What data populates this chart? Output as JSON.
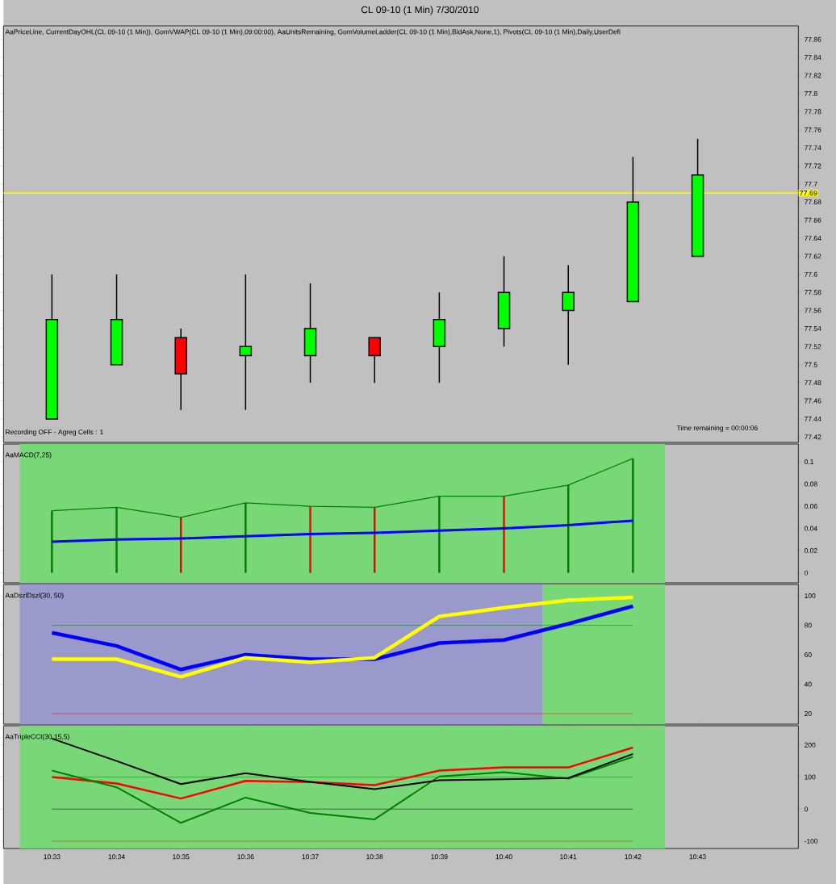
{
  "chart_data": [
    {
      "type": "candlestick",
      "title": "CL 09-10 (1 Min)  7/30/2010",
      "annotations": [
        "AaPriceLine, CurrentDayOHL(CL 09-10 (1 Min)), GomVWAP(CL 09-10 (1 Min),09:00:00), AaUnitsRemaining, GomVolumeLadder(CL 09-10 (1 Min),BidAsk,None,1), Pivots(CL 09-10 (1 Min),Daily,UserDefi",
        "Recording OFF - Agreg Cells : 1",
        "Time remaining = 00:00:06"
      ],
      "x": [
        10.55,
        10.5667,
        10.5833,
        10.6,
        10.6167,
        10.6333,
        10.65,
        10.6667,
        10.6833,
        10.7,
        10.7167
      ],
      "ohlc": [
        [
          77.44,
          77.6,
          77.44,
          77.55
        ],
        [
          77.5,
          77.6,
          77.5,
          77.55
        ],
        [
          77.53,
          77.54,
          77.45,
          77.49
        ],
        [
          77.51,
          77.6,
          77.45,
          77.52
        ],
        [
          77.51,
          77.59,
          77.48,
          77.54
        ],
        [
          77.53,
          77.53,
          77.48,
          77.51
        ],
        [
          77.52,
          77.58,
          77.48,
          77.55
        ],
        [
          77.54,
          77.62,
          77.52,
          77.58
        ],
        [
          77.56,
          77.61,
          77.5,
          77.58
        ],
        [
          77.57,
          77.73,
          77.57,
          77.68
        ],
        [
          77.62,
          77.75,
          77.62,
          77.71
        ]
      ],
      "colors": [
        "#00ff00",
        "#00ff00",
        "#ff0000",
        "#00ff00",
        "#00ff00",
        "#ff0000",
        "#00ff00",
        "#00ff00",
        "#00ff00",
        "#00ff00",
        "#00ff00"
      ],
      "xlim": [
        10.5375,
        10.7427
      ],
      "ylim": [
        77.414,
        77.875
      ],
      "yticks": [
        77.42,
        77.44,
        77.46,
        77.48,
        77.5,
        77.52,
        77.54,
        77.56,
        77.58,
        77.6,
        77.62,
        77.64,
        77.66,
        77.68,
        77.7,
        77.72,
        77.74,
        77.76,
        77.78,
        77.8,
        77.82,
        77.84,
        77.86
      ],
      "ref_lines": [
        {
          "axis": "y",
          "value": 77.69,
          "label": "77.69",
          "color": "#ffff00"
        }
      ],
      "tick_labels": "y"
    },
    {
      "type": "bar",
      "title": "AaMACD(7,25)",
      "x": [
        10.55,
        10.5667,
        10.5833,
        10.6,
        10.6167,
        10.6333,
        10.65,
        10.6667,
        10.6833,
        10.7
      ],
      "series": [
        {
          "type": "bar",
          "colors": [
            "#008000",
            "#008000",
            "#ff0000",
            "#008000",
            "#ff0000",
            "#ff0000",
            "#008000",
            "#ff0000",
            "#008000",
            "#008000"
          ],
          "values": [
            0.056,
            0.059,
            0.05,
            0.063,
            0.06,
            0.059,
            0.069,
            0.069,
            0.079,
            0.103
          ]
        },
        {
          "type": "line",
          "color": "#008000",
          "values": [
            0.056,
            0.059,
            0.05,
            0.063,
            0.06,
            0.059,
            0.069,
            0.069,
            0.079,
            0.103
          ]
        },
        {
          "type": "line",
          "color": "#0000ff",
          "values": [
            0.028,
            0.03,
            0.031,
            0.033,
            0.035,
            0.036,
            0.038,
            0.04,
            0.043,
            0.047
          ]
        }
      ],
      "bands": [
        {
          "axis": "x",
          "from": 10.5417,
          "to": 10.7083,
          "color": "#78d878"
        }
      ],
      "xlim": [
        10.5375,
        10.7427
      ],
      "ylim": [
        -0.009,
        0.116
      ],
      "yticks": [
        0,
        0.02,
        0.04,
        0.06,
        0.08,
        0.1
      ],
      "tick_labels": "y"
    },
    {
      "type": "line",
      "title": "AaDszlDszl(30, 50)",
      "x": [
        10.55,
        10.5667,
        10.5833,
        10.6,
        10.6167,
        10.6333,
        10.65,
        10.6667,
        10.6833,
        10.7
      ],
      "series": [
        {
          "color": "#0000ff",
          "values": [
            75,
            66,
            50,
            60,
            57,
            57,
            68,
            70,
            81,
            93
          ]
        },
        {
          "color": "#ffff00",
          "values": [
            57,
            57,
            45,
            58,
            55,
            58,
            86,
            92,
            97,
            99
          ]
        }
      ],
      "bands": [
        {
          "axis": "x",
          "from": 10.5417,
          "to": 10.6767,
          "color": "#9999cc"
        },
        {
          "axis": "x",
          "from": 10.6767,
          "to": 10.7083,
          "color": "#78d878"
        }
      ],
      "ref_lines": [
        {
          "axis": "y",
          "value": 80,
          "color": "#008000"
        },
        {
          "axis": "y",
          "value": 20,
          "color": "#ff0000"
        }
      ],
      "xlim": [
        10.5375,
        10.7427
      ],
      "ylim": [
        12.9,
        107.7
      ],
      "yticks": [
        20,
        40,
        60,
        80,
        100
      ],
      "tick_labels": "y"
    },
    {
      "type": "line",
      "title": "AaTripleCCI(30,15,5)",
      "x": [
        10.55,
        10.5667,
        10.5833,
        10.6,
        10.6167,
        10.6333,
        10.65,
        10.6667,
        10.6833,
        10.7
      ],
      "series": [
        {
          "color": "#000000",
          "values": [
            220,
            150,
            78,
            112,
            85,
            62,
            90,
            93,
            97,
            172
          ]
        },
        {
          "color": "#ff0000",
          "values": [
            100,
            80,
            33,
            88,
            84,
            75,
            120,
            130,
            130,
            192
          ]
        },
        {
          "color": "#008000",
          "values": [
            120,
            68,
            -43,
            36,
            -12,
            -32,
            102,
            115,
            95,
            163
          ]
        }
      ],
      "bands": [
        {
          "axis": "x",
          "from": 10.5417,
          "to": 10.7083,
          "color": "#78d878"
        }
      ],
      "ref_lines": [
        {
          "axis": "y",
          "value": 100,
          "color": "#008000"
        },
        {
          "axis": "y",
          "value": 0,
          "color": "#000000"
        },
        {
          "axis": "y",
          "value": -100,
          "color": "#ff0000"
        }
      ],
      "xlim": [
        10.5375,
        10.7427
      ],
      "ylim": [
        -123,
        260
      ],
      "yticks": [
        -100,
        0,
        100,
        200
      ],
      "xticks": [
        {
          "value": 10.55,
          "label": "10:33"
        },
        {
          "value": 10.5667,
          "label": "10:34"
        },
        {
          "value": 10.5833,
          "label": "10:35"
        },
        {
          "value": 10.6,
          "label": "10:36"
        },
        {
          "value": 10.6167,
          "label": "10:37"
        },
        {
          "value": 10.6333,
          "label": "10:38"
        },
        {
          "value": 10.65,
          "label": "10:39"
        },
        {
          "value": 10.6667,
          "label": "10:40"
        },
        {
          "value": 10.6833,
          "label": "10:41"
        },
        {
          "value": 10.7,
          "label": "10:42"
        },
        {
          "value": 10.7167,
          "label": "10:43"
        }
      ]
    }
  ]
}
